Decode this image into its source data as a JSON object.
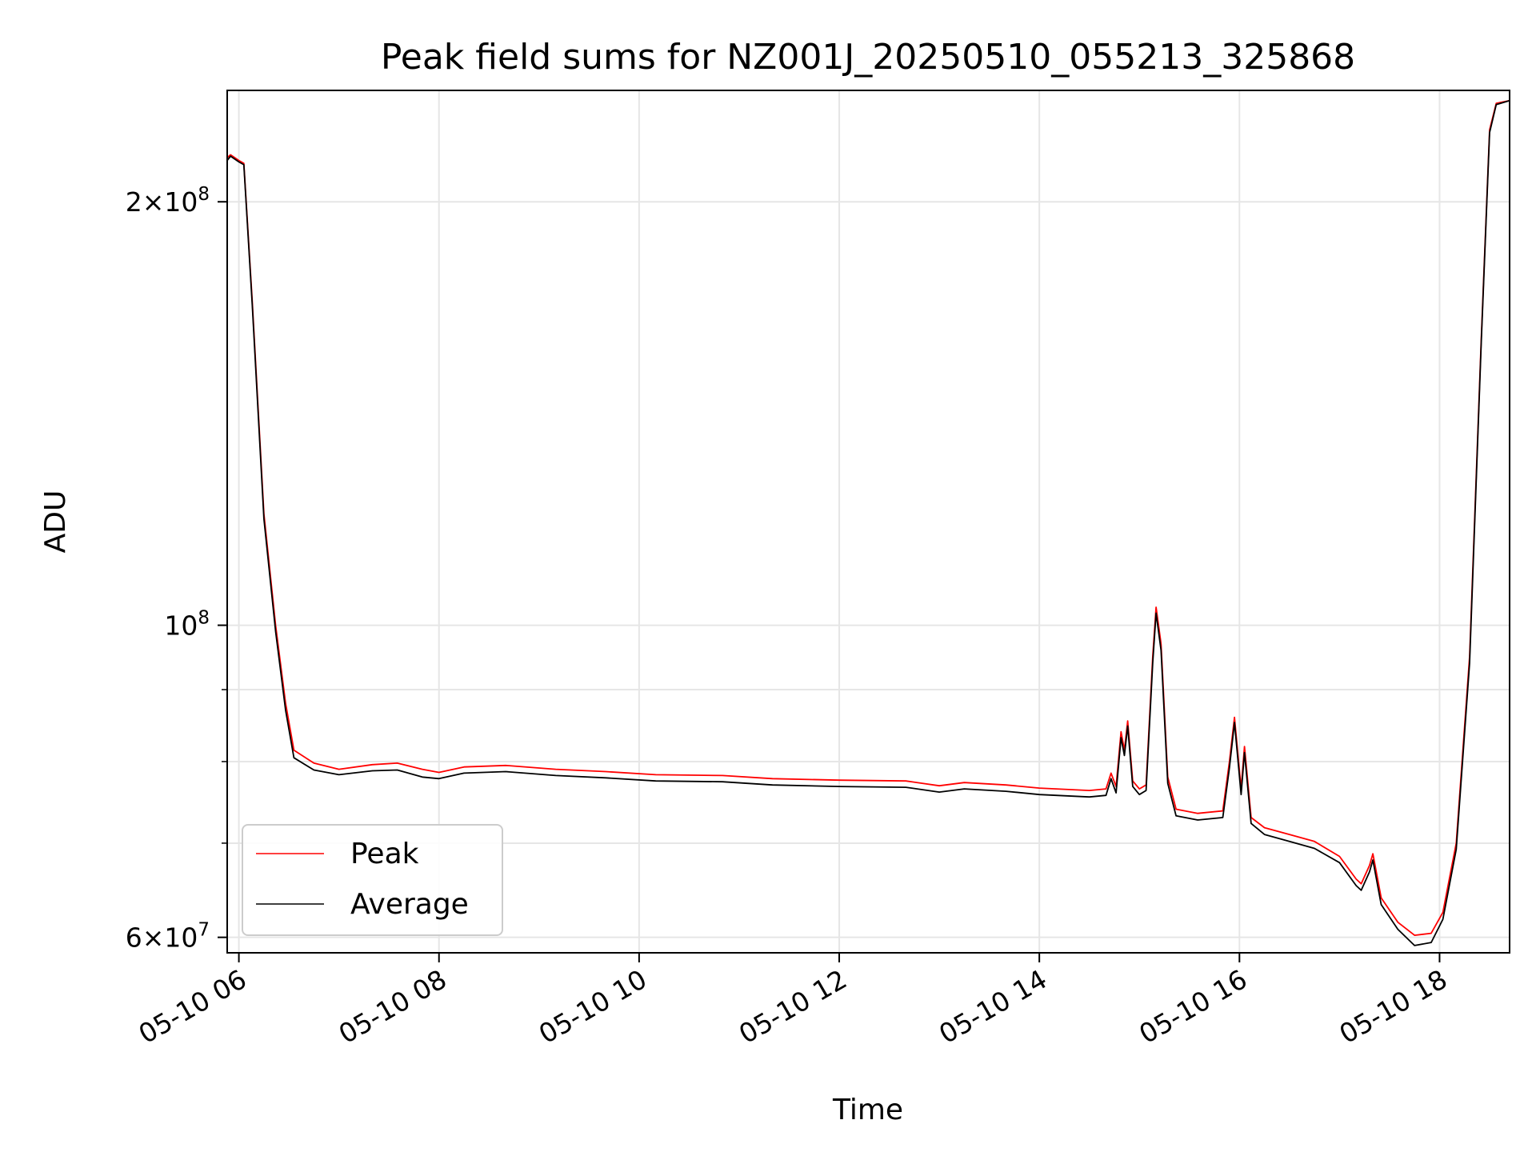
{
  "chart_data": {
    "type": "line",
    "title": "Peak field sums for NZ001J_20250510_055213_325868",
    "xlabel": "Time",
    "ylabel": "ADU",
    "y_scale": "log",
    "ylim": [
      58500000,
      240000000
    ],
    "xlim": [
      "2025-05-10T05:53",
      "2025-05-10T18:42"
    ],
    "grid": true,
    "legend_position": "lower-left",
    "x_ticks": [
      {
        "t": "2025-05-10T06:00",
        "label": "05-10 06"
      },
      {
        "t": "2025-05-10T08:00",
        "label": "05-10 08"
      },
      {
        "t": "2025-05-10T10:00",
        "label": "05-10 10"
      },
      {
        "t": "2025-05-10T12:00",
        "label": "05-10 12"
      },
      {
        "t": "2025-05-10T14:00",
        "label": "05-10 14"
      },
      {
        "t": "2025-05-10T16:00",
        "label": "05-10 16"
      },
      {
        "t": "2025-05-10T18:00",
        "label": "05-10 18"
      }
    ],
    "y_major_ticks": [
      {
        "value": 200000000,
        "mantissa": "2",
        "exponent": "8"
      },
      {
        "value": 100000000,
        "mantissa": "",
        "exponent": "8"
      },
      {
        "value": 60000000,
        "mantissa": "6",
        "exponent": "7"
      }
    ],
    "y_times_sign": "×",
    "y_base": "10",
    "y_minor_ticks": [
      70000000,
      80000000,
      90000000
    ],
    "series": [
      {
        "name": "Peak",
        "color": "#ff0000",
        "points": [
          [
            "2025-05-10T05:53",
            215000000
          ],
          [
            "2025-05-10T05:55",
            216000000
          ],
          [
            "2025-05-10T06:00",
            214000000
          ],
          [
            "2025-05-10T06:03",
            213000000
          ],
          [
            "2025-05-10T06:08",
            170000000
          ],
          [
            "2025-05-10T06:15",
            120000000
          ],
          [
            "2025-05-10T06:22",
            100000000
          ],
          [
            "2025-05-10T06:28",
            88000000
          ],
          [
            "2025-05-10T06:33",
            81500000
          ],
          [
            "2025-05-10T06:45",
            79800000
          ],
          [
            "2025-05-10T07:00",
            79000000
          ],
          [
            "2025-05-10T07:20",
            79600000
          ],
          [
            "2025-05-10T07:35",
            79800000
          ],
          [
            "2025-05-10T07:50",
            79000000
          ],
          [
            "2025-05-10T08:00",
            78600000
          ],
          [
            "2025-05-10T08:15",
            79300000
          ],
          [
            "2025-05-10T08:40",
            79500000
          ],
          [
            "2025-05-10T09:10",
            79000000
          ],
          [
            "2025-05-10T09:40",
            78700000
          ],
          [
            "2025-05-10T10:10",
            78300000
          ],
          [
            "2025-05-10T10:50",
            78200000
          ],
          [
            "2025-05-10T11:20",
            77800000
          ],
          [
            "2025-05-10T12:00",
            77600000
          ],
          [
            "2025-05-10T12:40",
            77500000
          ],
          [
            "2025-05-10T13:00",
            76900000
          ],
          [
            "2025-05-10T13:15",
            77300000
          ],
          [
            "2025-05-10T13:40",
            77000000
          ],
          [
            "2025-05-10T14:00",
            76600000
          ],
          [
            "2025-05-10T14:30",
            76300000
          ],
          [
            "2025-05-10T14:40",
            76500000
          ],
          [
            "2025-05-10T14:43",
            78500000
          ],
          [
            "2025-05-10T14:46",
            76800000
          ],
          [
            "2025-05-10T14:49",
            84000000
          ],
          [
            "2025-05-10T14:51",
            81500000
          ],
          [
            "2025-05-10T14:53",
            85500000
          ],
          [
            "2025-05-10T14:56",
            77500000
          ],
          [
            "2025-05-10T15:00",
            76500000
          ],
          [
            "2025-05-10T15:04",
            77000000
          ],
          [
            "2025-05-10T15:08",
            95000000
          ],
          [
            "2025-05-10T15:10",
            103000000
          ],
          [
            "2025-05-10T15:13",
            97000000
          ],
          [
            "2025-05-10T15:17",
            78000000
          ],
          [
            "2025-05-10T15:22",
            74000000
          ],
          [
            "2025-05-10T15:35",
            73500000
          ],
          [
            "2025-05-10T15:50",
            73800000
          ],
          [
            "2025-05-10T15:54",
            80000000
          ],
          [
            "2025-05-10T15:57",
            86000000
          ],
          [
            "2025-05-10T16:01",
            76500000
          ],
          [
            "2025-05-10T16:03",
            82000000
          ],
          [
            "2025-05-10T16:07",
            73000000
          ],
          [
            "2025-05-10T16:15",
            71800000
          ],
          [
            "2025-05-10T16:30",
            71000000
          ],
          [
            "2025-05-10T16:45",
            70200000
          ],
          [
            "2025-05-10T17:00",
            68500000
          ],
          [
            "2025-05-10T17:10",
            66000000
          ],
          [
            "2025-05-10T17:13",
            65500000
          ],
          [
            "2025-05-10T17:18",
            67500000
          ],
          [
            "2025-05-10T17:20",
            68800000
          ],
          [
            "2025-05-10T17:25",
            64000000
          ],
          [
            "2025-05-10T17:35",
            61500000
          ],
          [
            "2025-05-10T17:45",
            60200000
          ],
          [
            "2025-05-10T17:55",
            60400000
          ],
          [
            "2025-05-10T18:02",
            62500000
          ],
          [
            "2025-05-10T18:10",
            70000000
          ],
          [
            "2025-05-10T18:18",
            95000000
          ],
          [
            "2025-05-10T18:25",
            160000000
          ],
          [
            "2025-05-10T18:30",
            225000000
          ],
          [
            "2025-05-10T18:34",
            235000000
          ],
          [
            "2025-05-10T18:42",
            236000000
          ]
        ]
      },
      {
        "name": "Average",
        "color": "#000000",
        "points": [
          [
            "2025-05-10T05:53",
            214000000
          ],
          [
            "2025-05-10T05:55",
            215500000
          ],
          [
            "2025-05-10T06:00",
            213500000
          ],
          [
            "2025-05-10T06:03",
            212500000
          ],
          [
            "2025-05-10T06:08",
            169000000
          ],
          [
            "2025-05-10T06:15",
            119000000
          ],
          [
            "2025-05-10T06:22",
            99000000
          ],
          [
            "2025-05-10T06:28",
            87000000
          ],
          [
            "2025-05-10T06:33",
            80500000
          ],
          [
            "2025-05-10T06:45",
            78900000
          ],
          [
            "2025-05-10T07:00",
            78300000
          ],
          [
            "2025-05-10T07:20",
            78800000
          ],
          [
            "2025-05-10T07:35",
            78900000
          ],
          [
            "2025-05-10T07:50",
            78000000
          ],
          [
            "2025-05-10T08:00",
            77800000
          ],
          [
            "2025-05-10T08:15",
            78500000
          ],
          [
            "2025-05-10T08:40",
            78700000
          ],
          [
            "2025-05-10T09:10",
            78200000
          ],
          [
            "2025-05-10T09:40",
            77900000
          ],
          [
            "2025-05-10T10:10",
            77500000
          ],
          [
            "2025-05-10T10:50",
            77400000
          ],
          [
            "2025-05-10T11:20",
            77000000
          ],
          [
            "2025-05-10T12:00",
            76800000
          ],
          [
            "2025-05-10T12:40",
            76700000
          ],
          [
            "2025-05-10T13:00",
            76100000
          ],
          [
            "2025-05-10T13:15",
            76500000
          ],
          [
            "2025-05-10T13:40",
            76200000
          ],
          [
            "2025-05-10T14:00",
            75800000
          ],
          [
            "2025-05-10T14:30",
            75500000
          ],
          [
            "2025-05-10T14:40",
            75700000
          ],
          [
            "2025-05-10T14:43",
            77800000
          ],
          [
            "2025-05-10T14:46",
            76000000
          ],
          [
            "2025-05-10T14:49",
            83200000
          ],
          [
            "2025-05-10T14:51",
            80800000
          ],
          [
            "2025-05-10T14:53",
            84800000
          ],
          [
            "2025-05-10T14:56",
            76800000
          ],
          [
            "2025-05-10T15:00",
            75800000
          ],
          [
            "2025-05-10T15:04",
            76300000
          ],
          [
            "2025-05-10T15:08",
            94000000
          ],
          [
            "2025-05-10T15:10",
            102000000
          ],
          [
            "2025-05-10T15:13",
            96000000
          ],
          [
            "2025-05-10T15:17",
            77200000
          ],
          [
            "2025-05-10T15:22",
            73200000
          ],
          [
            "2025-05-10T15:35",
            72700000
          ],
          [
            "2025-05-10T15:50",
            73000000
          ],
          [
            "2025-05-10T15:54",
            79200000
          ],
          [
            "2025-05-10T15:57",
            85300000
          ],
          [
            "2025-05-10T16:01",
            75800000
          ],
          [
            "2025-05-10T16:03",
            81200000
          ],
          [
            "2025-05-10T16:07",
            72300000
          ],
          [
            "2025-05-10T16:15",
            71000000
          ],
          [
            "2025-05-10T16:30",
            70200000
          ],
          [
            "2025-05-10T16:45",
            69400000
          ],
          [
            "2025-05-10T17:00",
            67800000
          ],
          [
            "2025-05-10T17:10",
            65300000
          ],
          [
            "2025-05-10T17:13",
            64800000
          ],
          [
            "2025-05-10T17:18",
            66800000
          ],
          [
            "2025-05-10T17:20",
            68100000
          ],
          [
            "2025-05-10T17:25",
            63300000
          ],
          [
            "2025-05-10T17:35",
            60800000
          ],
          [
            "2025-05-10T17:45",
            59200000
          ],
          [
            "2025-05-10T17:55",
            59500000
          ],
          [
            "2025-05-10T18:02",
            61800000
          ],
          [
            "2025-05-10T18:10",
            69300000
          ],
          [
            "2025-05-10T18:18",
            94000000
          ],
          [
            "2025-05-10T18:25",
            159000000
          ],
          [
            "2025-05-10T18:30",
            224000000
          ],
          [
            "2025-05-10T18:34",
            234500000
          ],
          [
            "2025-05-10T18:42",
            236000000
          ]
        ]
      }
    ]
  }
}
